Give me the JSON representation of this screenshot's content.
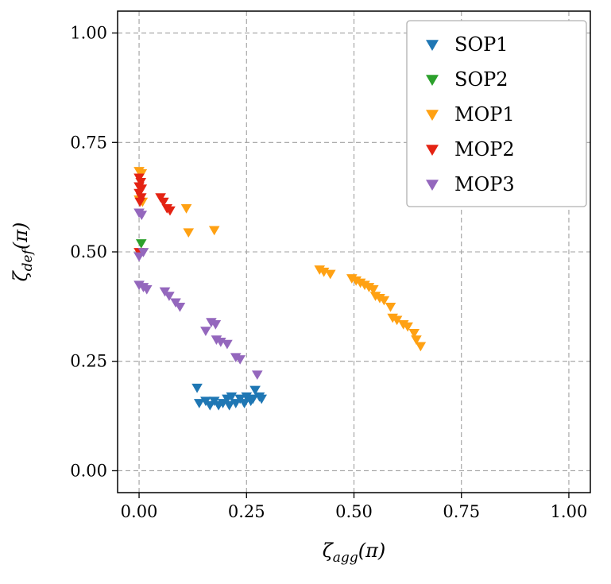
{
  "figure": {
    "background": "#ffffff",
    "grid_color": "#a0a0a0",
    "axis_color": "#000000",
    "legend_border_color": "#b0b0b0"
  },
  "chart_data": {
    "type": "scatter",
    "marker": "triangle-down",
    "title": "",
    "xlabel": {
      "base": "ζ",
      "sub": "agg",
      "rest": "(π)"
    },
    "ylabel": {
      "base": "ζ",
      "sub": "def",
      "rest": "(π)"
    },
    "xlim": [
      -0.05,
      1.05
    ],
    "ylim": [
      -0.05,
      1.05
    ],
    "xticks": [
      0.0,
      0.25,
      0.5,
      0.75,
      1.0
    ],
    "xtick_labels": [
      "0.00",
      "0.25",
      "0.50",
      "0.75",
      "1.00"
    ],
    "yticks": [
      0.0,
      0.25,
      0.5,
      0.75,
      1.0
    ],
    "ytick_labels": [
      "0.00",
      "0.25",
      "0.50",
      "0.75",
      "1.00"
    ],
    "grid": true,
    "grid_style": "dashed",
    "legend": {
      "position": "upper-right"
    },
    "series": [
      {
        "name": "SOP1",
        "color": "#1f77b4",
        "points": [
          [
            0.135,
            0.19
          ],
          [
            0.14,
            0.155
          ],
          [
            0.155,
            0.16
          ],
          [
            0.165,
            0.15
          ],
          [
            0.175,
            0.16
          ],
          [
            0.185,
            0.15
          ],
          [
            0.195,
            0.155
          ],
          [
            0.205,
            0.165
          ],
          [
            0.21,
            0.15
          ],
          [
            0.215,
            0.17
          ],
          [
            0.225,
            0.155
          ],
          [
            0.235,
            0.165
          ],
          [
            0.245,
            0.155
          ],
          [
            0.25,
            0.17
          ],
          [
            0.26,
            0.16
          ],
          [
            0.265,
            0.165
          ],
          [
            0.27,
            0.185
          ],
          [
            0.28,
            0.17
          ],
          [
            0.285,
            0.165
          ]
        ]
      },
      {
        "name": "SOP2",
        "color": "#2ca02c",
        "points": [
          [
            0.005,
            0.52
          ]
        ]
      },
      {
        "name": "MOP1",
        "color": "#ffa113",
        "points": [
          [
            0.0,
            0.685
          ],
          [
            0.006,
            0.68
          ],
          [
            0.0,
            0.62
          ],
          [
            0.008,
            0.615
          ],
          [
            0.11,
            0.6
          ],
          [
            0.115,
            0.545
          ],
          [
            0.175,
            0.55
          ],
          [
            0.42,
            0.46
          ],
          [
            0.43,
            0.455
          ],
          [
            0.445,
            0.45
          ],
          [
            0.495,
            0.44
          ],
          [
            0.505,
            0.435
          ],
          [
            0.515,
            0.43
          ],
          [
            0.525,
            0.425
          ],
          [
            0.535,
            0.42
          ],
          [
            0.545,
            0.415
          ],
          [
            0.55,
            0.4
          ],
          [
            0.56,
            0.395
          ],
          [
            0.57,
            0.39
          ],
          [
            0.585,
            0.375
          ],
          [
            0.59,
            0.35
          ],
          [
            0.6,
            0.345
          ],
          [
            0.615,
            0.335
          ],
          [
            0.625,
            0.33
          ],
          [
            0.64,
            0.315
          ],
          [
            0.645,
            0.3
          ],
          [
            0.655,
            0.285
          ]
        ]
      },
      {
        "name": "MOP2",
        "color": "#e42313",
        "points": [
          [
            0.0,
            0.67
          ],
          [
            0.004,
            0.66
          ],
          [
            0.0,
            0.65
          ],
          [
            0.006,
            0.645
          ],
          [
            0.0,
            0.635
          ],
          [
            0.005,
            0.625
          ],
          [
            0.002,
            0.615
          ],
          [
            0.0,
            0.5
          ],
          [
            0.05,
            0.625
          ],
          [
            0.057,
            0.615
          ],
          [
            0.065,
            0.6
          ],
          [
            0.072,
            0.595
          ]
        ]
      },
      {
        "name": "MOP3",
        "color": "#9467bd",
        "points": [
          [
            0.0,
            0.59
          ],
          [
            0.006,
            0.585
          ],
          [
            0.0,
            0.49
          ],
          [
            0.01,
            0.5
          ],
          [
            0.0,
            0.425
          ],
          [
            0.01,
            0.42
          ],
          [
            0.018,
            0.415
          ],
          [
            0.06,
            0.41
          ],
          [
            0.07,
            0.4
          ],
          [
            0.085,
            0.385
          ],
          [
            0.095,
            0.375
          ],
          [
            0.155,
            0.32
          ],
          [
            0.168,
            0.34
          ],
          [
            0.178,
            0.335
          ],
          [
            0.18,
            0.3
          ],
          [
            0.19,
            0.295
          ],
          [
            0.205,
            0.29
          ],
          [
            0.225,
            0.26
          ],
          [
            0.235,
            0.255
          ],
          [
            0.275,
            0.22
          ]
        ]
      }
    ]
  }
}
